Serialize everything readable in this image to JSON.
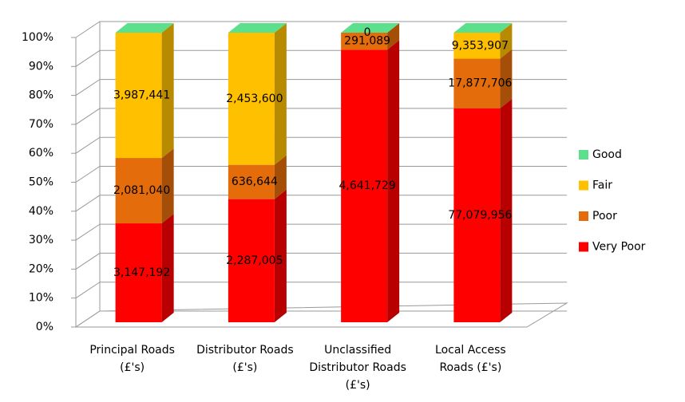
{
  "chart_data": {
    "type": "bar3d_stacked_percent",
    "categories": [
      "Principal Roads (£'s)",
      "Distributor Roads (£'s)",
      "Unclassified Distributor Roads (£'s)",
      "Local Access Roads (£'s)"
    ],
    "series": [
      {
        "name": "Very Poor",
        "color": "#ff0000",
        "values": [
          3147192,
          2287005,
          4641729,
          77079956
        ],
        "value_labels": [
          "3,147,192",
          "2,287,005",
          "4,641,729",
          "77,079,956"
        ]
      },
      {
        "name": "Poor",
        "color": "#e46c0a",
        "values": [
          2081040,
          636644,
          291089,
          17877706
        ],
        "value_labels": [
          "2,081,040",
          "636,644",
          "291,089",
          "17,877,706"
        ]
      },
      {
        "name": "Fair",
        "color": "#ffc000",
        "values": [
          3987441,
          2453600,
          0,
          9353907
        ],
        "value_labels": [
          "3,987,441",
          "2,453,600",
          null,
          "9,353,907"
        ]
      },
      {
        "name": "Good",
        "color": "#5ce08c",
        "values": [
          0,
          0,
          0,
          0
        ],
        "value_labels": [
          null,
          null,
          "0",
          null
        ]
      }
    ],
    "ylim": [
      0,
      100
    ],
    "yticks": [
      {
        "value": 0,
        "label": "0%"
      },
      {
        "value": 10,
        "label": "10%"
      },
      {
        "value": 20,
        "label": "20%"
      },
      {
        "value": 30,
        "label": "30%"
      },
      {
        "value": 40,
        "label": "40%"
      },
      {
        "value": 50,
        "label": "50%"
      },
      {
        "value": 60,
        "label": "60%"
      },
      {
        "value": 70,
        "label": "70%"
      },
      {
        "value": 80,
        "label": "80%"
      },
      {
        "value": 90,
        "label": "90%"
      },
      {
        "value": 100,
        "label": "100%"
      }
    ],
    "grid": true,
    "legend": "right"
  }
}
